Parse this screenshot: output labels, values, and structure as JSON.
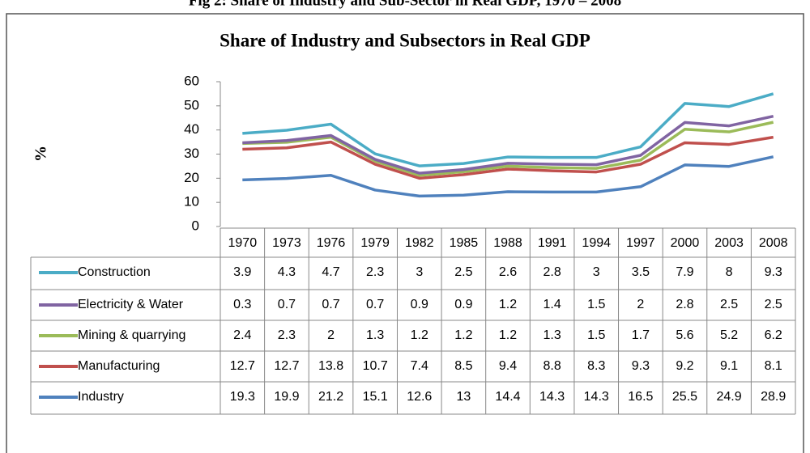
{
  "chart_data": {
    "type": "line",
    "stacked": true,
    "figure_caption": "Fig 2: Share of Industry and Sub-Sector in Real GDP, 1970 – 2008",
    "title": "Share of Industry and Subsectors in Real GDP",
    "y_label": "%",
    "categories": [
      "1970",
      "1973",
      "1976",
      "1979",
      "1982",
      "1985",
      "1988",
      "1991",
      "1994",
      "1997",
      "2000",
      "2003",
      "2008"
    ],
    "series": [
      {
        "name": "Construction",
        "color": "#4bacc6",
        "values": [
          3.9,
          4.3,
          4.7,
          2.3,
          3,
          2.5,
          2.6,
          2.8,
          3,
          3.5,
          7.9,
          8,
          9.3
        ]
      },
      {
        "name": "Electricity & Water",
        "color": "#8064a2",
        "values": [
          0.3,
          0.7,
          0.7,
          0.7,
          0.9,
          0.9,
          1.2,
          1.4,
          1.5,
          2,
          2.8,
          2.5,
          2.5
        ]
      },
      {
        "name": "Mining & quarrying",
        "color": "#9bbb59",
        "values": [
          2.4,
          2.3,
          2,
          1.3,
          1.2,
          1.2,
          1.2,
          1.3,
          1.5,
          1.7,
          5.6,
          5.2,
          6.2
        ]
      },
      {
        "name": "Manufacturing",
        "color": "#c0504d",
        "values": [
          12.7,
          12.7,
          13.8,
          10.7,
          7.4,
          8.5,
          9.4,
          8.8,
          8.3,
          9.3,
          9.2,
          9.1,
          8.1
        ]
      },
      {
        "name": "Industry",
        "color": "#4f81bd",
        "values": [
          19.3,
          19.9,
          21.2,
          15.1,
          12.6,
          13,
          14.4,
          14.3,
          14.3,
          16.5,
          25.5,
          24.9,
          28.9
        ]
      }
    ],
    "ylim": [
      0,
      60
    ],
    "yticks": [
      0,
      10,
      20,
      30,
      40,
      50,
      60
    ],
    "grid": false
  }
}
